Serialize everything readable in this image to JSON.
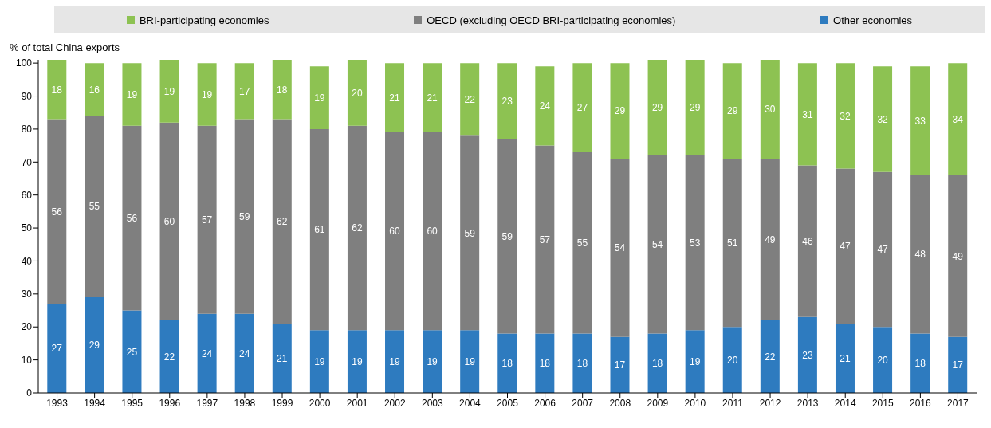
{
  "chart_data": {
    "type": "bar",
    "stacked": true,
    "ylabel": "% of total China exports",
    "categories": [
      "1993",
      "1994",
      "1995",
      "1996",
      "1997",
      "1998",
      "1999",
      "2000",
      "2001",
      "2002",
      "2003",
      "2004",
      "2005",
      "2006",
      "2007",
      "2008",
      "2009",
      "2010",
      "2011",
      "2012",
      "2013",
      "2014",
      "2015",
      "2016",
      "2017"
    ],
    "series": [
      {
        "name": "Other economies",
        "color": "#2e7bbf",
        "values": [
          27,
          29,
          25,
          22,
          24,
          24,
          21,
          19,
          19,
          19,
          19,
          19,
          18,
          18,
          18,
          17,
          18,
          19,
          20,
          22,
          23,
          21,
          20,
          18,
          17
        ]
      },
      {
        "name": "OECD (excluding OECD BRI-participating economies)",
        "color": "#7f7f7f",
        "values": [
          56,
          55,
          56,
          60,
          57,
          59,
          62,
          61,
          62,
          60,
          60,
          59,
          59,
          57,
          55,
          54,
          54,
          53,
          51,
          49,
          46,
          47,
          47,
          48,
          49
        ]
      },
      {
        "name": "BRI-participating economies",
        "color": "#8dc252",
        "values": [
          18,
          16,
          19,
          19,
          19,
          17,
          18,
          19,
          20,
          21,
          21,
          22,
          23,
          24,
          27,
          29,
          29,
          29,
          29,
          30,
          31,
          32,
          32,
          33,
          34
        ]
      }
    ],
    "ylim": [
      0,
      101
    ],
    "yticks": [
      0,
      10,
      20,
      30,
      40,
      50,
      60,
      70,
      80,
      90,
      100
    ],
    "data_labels": true,
    "legend": "top",
    "grid": false
  }
}
